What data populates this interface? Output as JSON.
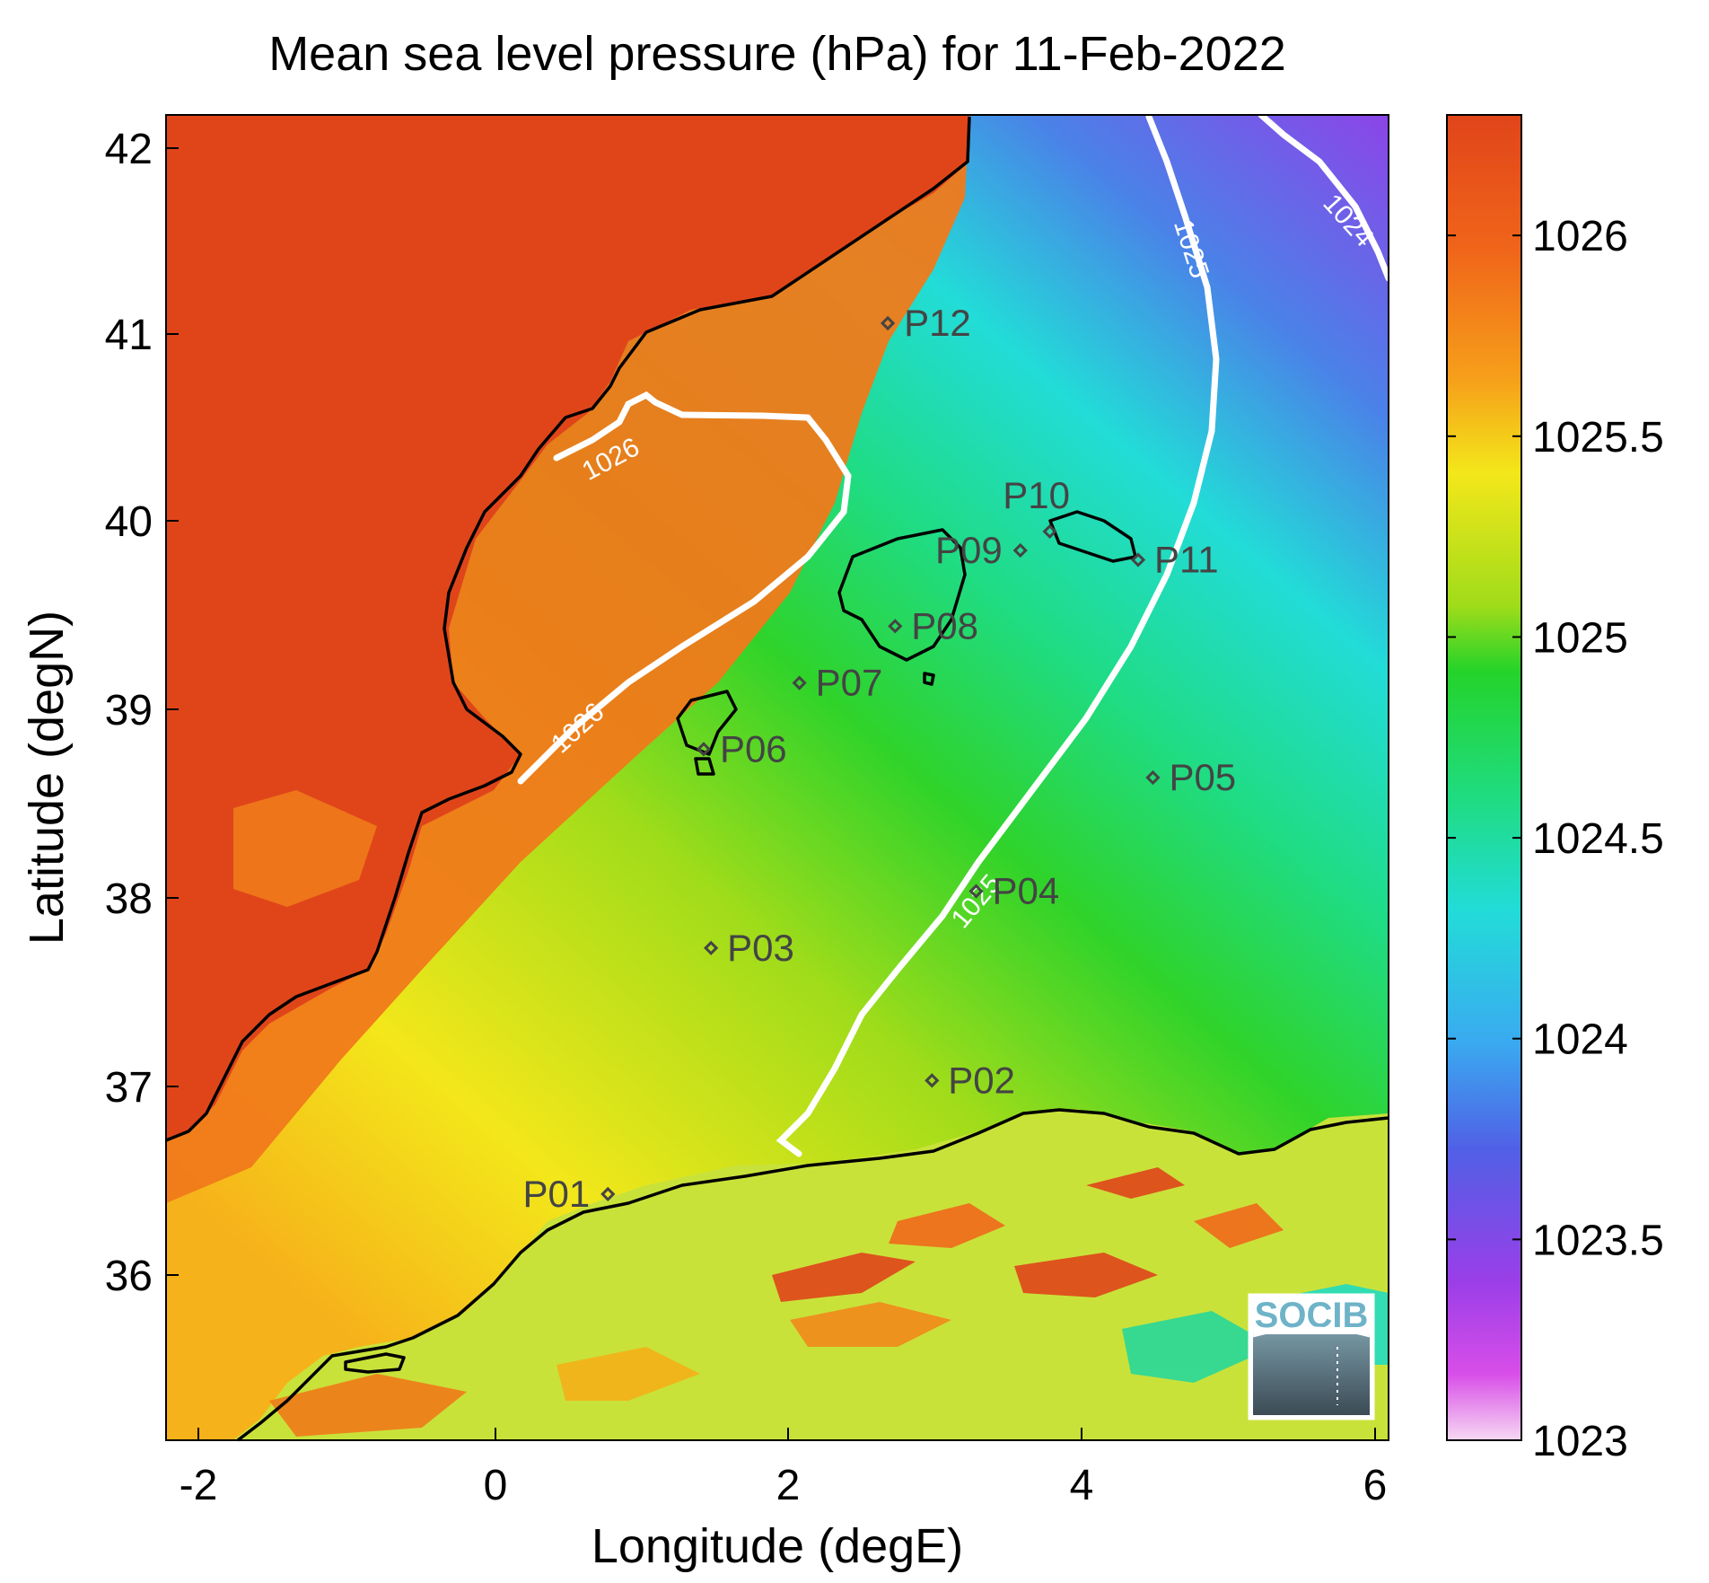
{
  "title": "Mean sea level pressure (hPa) for 11-Feb-2022",
  "xlabel": "Longitude (degE)",
  "ylabel": "Latitude (degN)",
  "x_ticks": [
    "-2",
    "0",
    "2",
    "4",
    "6"
  ],
  "y_ticks": [
    "42",
    "41",
    "40",
    "39",
    "38",
    "37",
    "36"
  ],
  "colorbar": {
    "ticks": [
      "1026",
      "1025.5",
      "1025",
      "1024.5",
      "1024",
      "1023.5",
      "1023"
    ],
    "range": [
      1023,
      1026.3
    ]
  },
  "contours": [
    {
      "level": "1026",
      "label": "1026"
    },
    {
      "level": "1025",
      "label": "1025"
    },
    {
      "level": "1024",
      "label": "1024"
    }
  ],
  "stations": [
    "P01",
    "P02",
    "P03",
    "P04",
    "P05",
    "P06",
    "P07",
    "P08",
    "P09",
    "P10",
    "P11",
    "P12"
  ],
  "logo": {
    "text": "SOCIB"
  },
  "colors": {
    "land_high": "#e0451a",
    "contour": "#ffffff",
    "coast": "#000000",
    "station": "#444444"
  },
  "chart_data": {
    "type": "heatmap",
    "title": "Mean sea level pressure (hPa) for 11-Feb-2022",
    "xlabel": "Longitude (degE)",
    "ylabel": "Latitude (degN)",
    "xlim": [
      -2.2,
      6.1
    ],
    "ylim": [
      35.2,
      42.2
    ],
    "colorbar_range": [
      1023,
      1026.3
    ],
    "contour_levels": [
      1024,
      1025,
      1026
    ],
    "stations": [
      {
        "name": "P01",
        "lon": 0.8,
        "lat": 36.5
      },
      {
        "name": "P02",
        "lon": 3.0,
        "lat": 37.1
      },
      {
        "name": "P03",
        "lon": 1.5,
        "lat": 37.8
      },
      {
        "name": "P04",
        "lon": 3.3,
        "lat": 38.1
      },
      {
        "name": "P05",
        "lon": 4.5,
        "lat": 38.7
      },
      {
        "name": "P06",
        "lon": 1.45,
        "lat": 38.85
      },
      {
        "name": "P07",
        "lon": 2.1,
        "lat": 39.2
      },
      {
        "name": "P08",
        "lon": 2.75,
        "lat": 39.5
      },
      {
        "name": "P09",
        "lon": 3.6,
        "lat": 39.9
      },
      {
        "name": "P10",
        "lon": 3.8,
        "lat": 40.0
      },
      {
        "name": "P11",
        "lon": 4.4,
        "lat": 39.85
      },
      {
        "name": "P12",
        "lon": 2.7,
        "lat": 41.1
      }
    ]
  }
}
